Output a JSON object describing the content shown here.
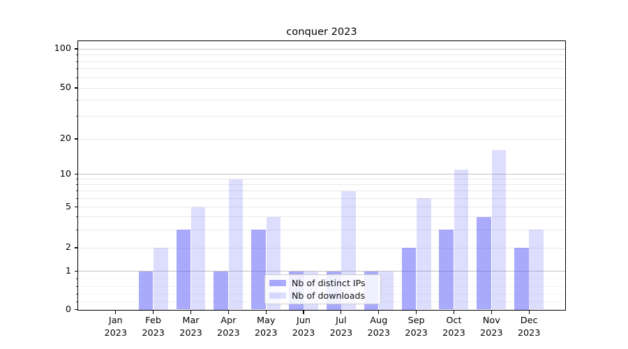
{
  "figure": {
    "title": "conquer 2023",
    "background": "#ffffff"
  },
  "chart_data": {
    "type": "bar",
    "title": "conquer 2023",
    "categories": [
      "Jan 2023",
      "Feb 2023",
      "Mar 2023",
      "Apr 2023",
      "May 2023",
      "Jun 2023",
      "Jul 2023",
      "Aug 2023",
      "Sep 2023",
      "Oct 2023",
      "Nov 2023",
      "Dec 2023"
    ],
    "series": [
      {
        "name": "Nb of distinct IPs",
        "color": "#aaaafa",
        "fill": "rgba(85,85,250,0.5)",
        "values": [
          0,
          1,
          3,
          1,
          3,
          1,
          1,
          1,
          2,
          3,
          4,
          2
        ]
      },
      {
        "name": "Nb of downloads",
        "color": "#dcdcfc",
        "fill": "rgba(85,85,250,0.2)",
        "values": [
          0,
          2,
          5,
          9,
          4,
          1,
          7,
          1,
          6,
          11,
          16,
          3
        ]
      }
    ],
    "xlabel": "",
    "ylabel": "",
    "yscale": "symlog",
    "ytick_labels": [
      0,
      1,
      2,
      5,
      10,
      20,
      50,
      100
    ],
    "ylim": [
      0,
      115
    ],
    "grid": "horizontal major and minor gridlines",
    "legend_position": "lower center inside plot"
  },
  "colors": {
    "bar_distinct_ips": "#aaaafa",
    "bar_downloads": "#dcdcfc",
    "grid_major": "#c2c2c2",
    "grid_minor": "#e9e9e9",
    "grid_sublinear": "#f4f4f4",
    "frame": "#000000",
    "legend_border": "#cccccc",
    "text": "#000000"
  }
}
